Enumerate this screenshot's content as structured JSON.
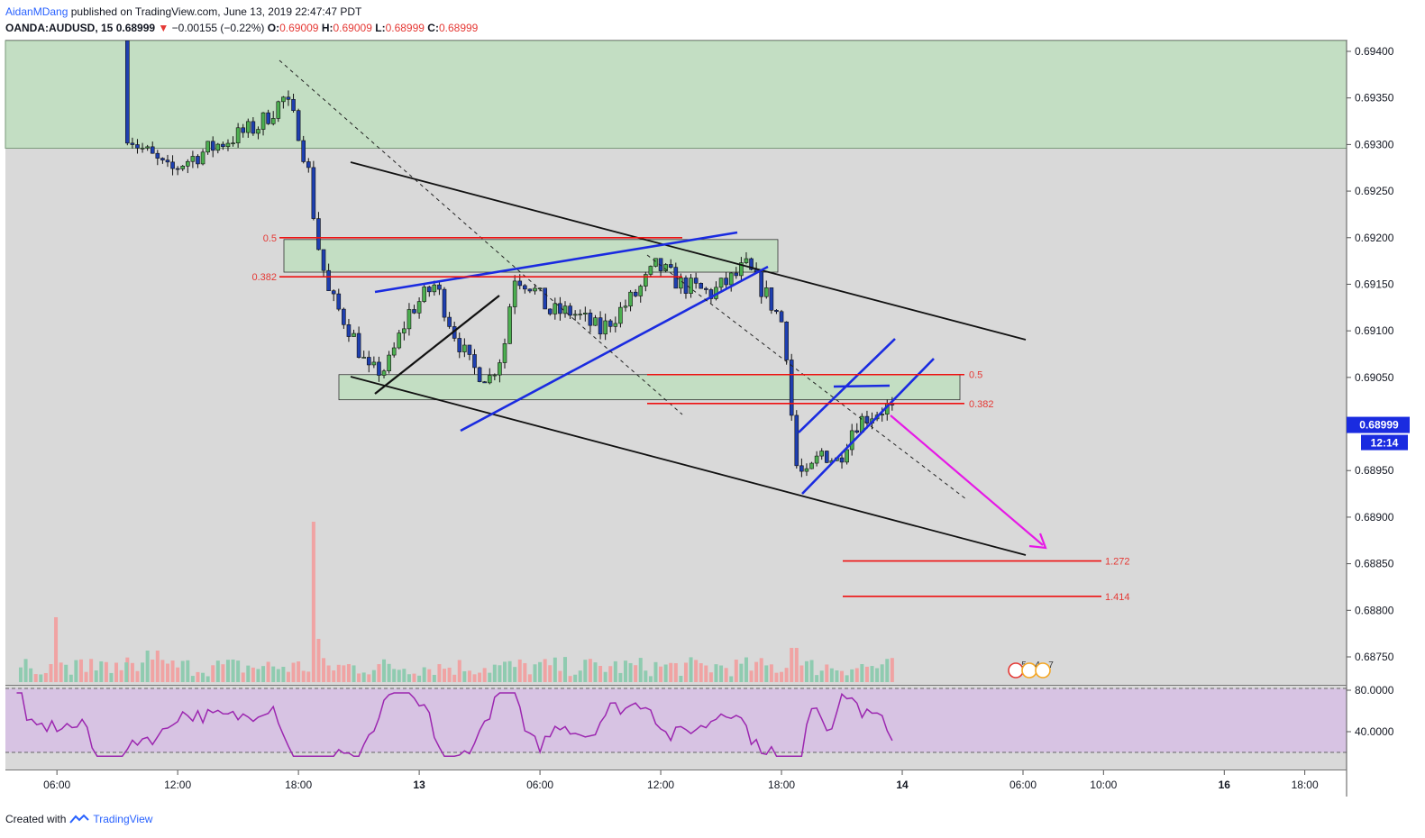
{
  "header": {
    "author": "AidanMDang",
    "published": "published on TradingView.com, June 13, 2019 22:47:47 PDT",
    "symbol": "OANDA:AUDUSD, 15",
    "last": "0.68999",
    "change": "−0.00155 (−0.22%)",
    "o_label": "O:",
    "o": "0.69009",
    "h_label": "H:",
    "h": "0.69009",
    "l_label": "L:",
    "l": "0.68999",
    "c_label": "C:",
    "c": "0.68999"
  },
  "footer": {
    "created_with": "Created with",
    "brand": "TradingView"
  },
  "chart_data": {
    "type": "candlestick",
    "symbol": "OANDA:AUDUSD",
    "timeframe": "15",
    "ylim": [
      0.68713,
      0.69415
    ],
    "y_ticks": [
      "0.69400",
      "0.69350",
      "0.69300",
      "0.69250",
      "0.69200",
      "0.69150",
      "0.69100",
      "0.69050",
      "0.68999",
      "0.68950",
      "0.68900",
      "0.68850",
      "0.68800",
      "0.68750"
    ],
    "current_price_label": "0.68999",
    "countdown_label": "12:14",
    "x_ticks": [
      "06:00",
      "12:00",
      "18:00",
      "13",
      "06:00",
      "12:00",
      "18:00",
      "14",
      "06:00",
      "10:00",
      "16",
      "18:00"
    ],
    "colors": {
      "up": "#4caf50",
      "down": "#1e3fb0",
      "zone": "#c3dec3",
      "background": "#d9d9d9",
      "rsi_band": "#d7c3e3",
      "rsi_line": "#9c27b0"
    },
    "supply_zone": {
      "top": 0.6942,
      "bottom": 0.69296
    },
    "zones": [
      {
        "name": "upper-zone",
        "top": 0.69198,
        "bottom": 0.69163
      },
      {
        "name": "lower-zone",
        "top": 0.69053,
        "bottom": 0.69026
      },
      {
        "name": "right-zone",
        "top": 0.69053,
        "bottom": 0.69026
      }
    ],
    "fib_levels": [
      {
        "label": "0.5",
        "price": 0.692
      },
      {
        "label": "0.382",
        "price": 0.69158
      },
      {
        "label": "0.5",
        "price": 0.69053
      },
      {
        "label": "0.382",
        "price": 0.69022
      },
      {
        "label": "1.272",
        "price": 0.68853
      },
      {
        "label": "1.414",
        "price": 0.68815
      }
    ],
    "rsi": {
      "levels": [
        "80.0000",
        "40.0000"
      ]
    },
    "event_badges": [
      "5",
      "4",
      "7"
    ]
  }
}
